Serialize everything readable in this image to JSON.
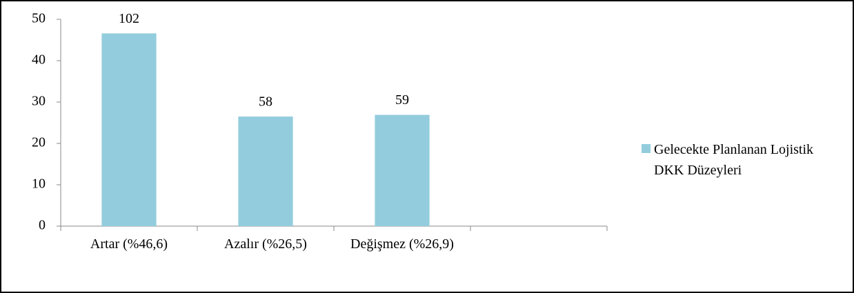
{
  "chart_data": {
    "type": "bar",
    "categories": [
      "Artar (%46,6)",
      "Azalır (%26,5)",
      "Değişmez (%26,9)",
      null
    ],
    "series": [
      {
        "name": "Gelecekte Planlanan Lojistik DKK Düzeyleri",
        "color": "#93cddd",
        "values": [
          46.6,
          26.5,
          26.9,
          null
        ],
        "value_labels": [
          "102",
          "58",
          "59",
          null
        ]
      }
    ],
    "ylim": [
      0,
      50
    ],
    "yticks": [
      0,
      10,
      20,
      30,
      40,
      50
    ],
    "grid": false,
    "legend": "right"
  }
}
